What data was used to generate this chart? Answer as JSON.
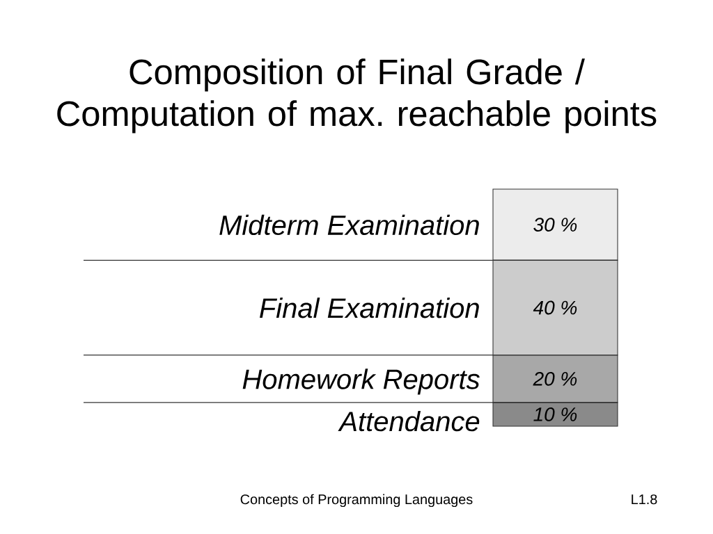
{
  "chart_data": {
    "type": "bar",
    "title": "Composition of Final Grade / Computation of max. reachable points",
    "categories": [
      null
    ],
    "stacked": true,
    "series": [
      {
        "name": "Attendance",
        "color": "#8a8a8a",
        "values": [
          10
        ],
        "value_labels": [
          "10 %"
        ]
      },
      {
        "name": "Homework Reports",
        "color": "#a8a8a8",
        "values": [
          20
        ],
        "value_labels": [
          "20 %"
        ]
      },
      {
        "name": "Final Examination",
        "color": "#cccccc",
        "values": [
          40
        ],
        "value_labels": [
          "40 %"
        ]
      },
      {
        "name": "Midterm Examination",
        "color": "#ececec",
        "values": [
          30
        ],
        "value_labels": [
          "30 %"
        ]
      }
    ],
    "ref_lines": [
      {
        "axis": "y",
        "value": 70
      },
      {
        "axis": "y",
        "value": 30
      },
      {
        "axis": "y",
        "value": 10
      }
    ],
    "annotations": [
      "Concepts of Programming Languages",
      "L1.8"
    ]
  }
}
